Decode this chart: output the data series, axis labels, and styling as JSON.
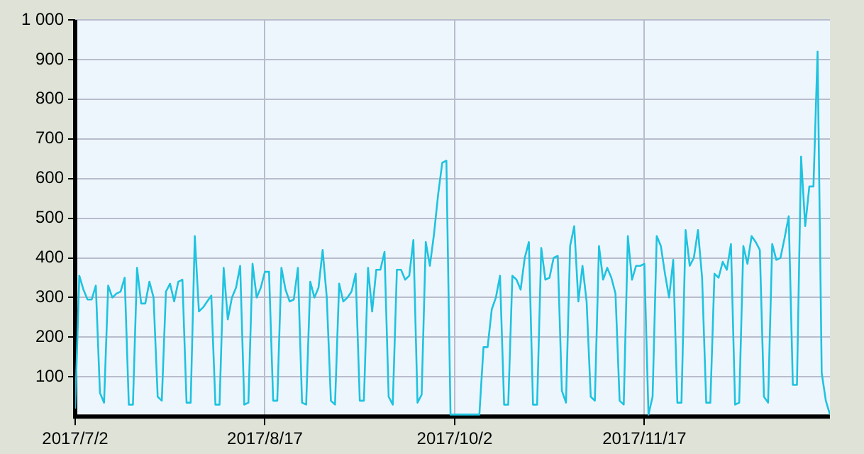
{
  "chart_data": {
    "type": "line",
    "color": "#1ec3e0",
    "marker": "none",
    "grid": true,
    "legend": false,
    "xlim": [
      "2017-07-02",
      "2018-01-01"
    ],
    "xticks": [
      {
        "value": "2017-07-02",
        "label": "2017/7/2"
      },
      {
        "value": "2017-08-17",
        "label": "2017/8/17"
      },
      {
        "value": "2017-10-02",
        "label": "2017/10/2"
      },
      {
        "value": "2017-11-17",
        "label": "2017/11/17"
      }
    ],
    "ylim": [
      0,
      1000
    ],
    "yticks": [
      100,
      200,
      300,
      400,
      500,
      600,
      700,
      800,
      900,
      {
        "value": 1000,
        "label": "1 000"
      }
    ],
    "x": [
      "2017-07-02",
      "2017-07-03",
      "2017-07-04",
      "2017-07-05",
      "2017-07-06",
      "2017-07-07",
      "2017-07-08",
      "2017-07-09",
      "2017-07-10",
      "2017-07-11",
      "2017-07-12",
      "2017-07-13",
      "2017-07-14",
      "2017-07-15",
      "2017-07-16",
      "2017-07-17",
      "2017-07-18",
      "2017-07-19",
      "2017-07-20",
      "2017-07-21",
      "2017-07-22",
      "2017-07-23",
      "2017-07-24",
      "2017-07-25",
      "2017-07-26",
      "2017-07-27",
      "2017-07-28",
      "2017-07-29",
      "2017-07-30",
      "2017-07-31",
      "2017-08-01",
      "2017-08-02",
      "2017-08-03",
      "2017-08-04",
      "2017-08-05",
      "2017-08-06",
      "2017-08-07",
      "2017-08-08",
      "2017-08-09",
      "2017-08-10",
      "2017-08-11",
      "2017-08-12",
      "2017-08-13",
      "2017-08-14",
      "2017-08-15",
      "2017-08-16",
      "2017-08-17",
      "2017-08-18",
      "2017-08-19",
      "2017-08-20",
      "2017-08-21",
      "2017-08-22",
      "2017-08-23",
      "2017-08-24",
      "2017-08-25",
      "2017-08-26",
      "2017-08-27",
      "2017-08-28",
      "2017-08-29",
      "2017-08-30",
      "2017-08-31",
      "2017-09-01",
      "2017-09-02",
      "2017-09-03",
      "2017-09-04",
      "2017-09-05",
      "2017-09-06",
      "2017-09-07",
      "2017-09-08",
      "2017-09-09",
      "2017-09-10",
      "2017-09-11",
      "2017-09-12",
      "2017-09-13",
      "2017-09-14",
      "2017-09-15",
      "2017-09-16",
      "2017-09-17",
      "2017-09-18",
      "2017-09-19",
      "2017-09-20",
      "2017-09-21",
      "2017-09-22",
      "2017-09-23",
      "2017-09-24",
      "2017-09-25",
      "2017-09-26",
      "2017-09-27",
      "2017-09-28",
      "2017-09-29",
      "2017-09-30",
      "2017-10-01",
      "2017-10-02",
      "2017-10-03",
      "2017-10-04",
      "2017-10-05",
      "2017-10-06",
      "2017-10-07",
      "2017-10-08",
      "2017-10-09",
      "2017-10-10",
      "2017-10-11",
      "2017-10-12",
      "2017-10-13",
      "2017-10-14",
      "2017-10-15",
      "2017-10-16",
      "2017-10-17",
      "2017-10-18",
      "2017-10-19",
      "2017-10-20",
      "2017-10-21",
      "2017-10-22",
      "2017-10-23",
      "2017-10-24",
      "2017-10-25",
      "2017-10-26",
      "2017-10-27",
      "2017-10-28",
      "2017-10-29",
      "2017-10-30",
      "2017-10-31",
      "2017-11-01",
      "2017-11-02",
      "2017-11-03",
      "2017-11-04",
      "2017-11-05",
      "2017-11-06",
      "2017-11-07",
      "2017-11-08",
      "2017-11-09",
      "2017-11-10",
      "2017-11-11",
      "2017-11-12",
      "2017-11-13",
      "2017-11-14",
      "2017-11-15",
      "2017-11-16",
      "2017-11-17",
      "2017-11-18",
      "2017-11-19",
      "2017-11-20",
      "2017-11-21",
      "2017-11-22",
      "2017-11-23",
      "2017-11-24",
      "2017-11-25",
      "2017-11-26",
      "2017-11-27",
      "2017-11-28",
      "2017-11-29",
      "2017-11-30",
      "2017-12-01",
      "2017-12-02",
      "2017-12-03",
      "2017-12-04",
      "2017-12-05",
      "2017-12-06",
      "2017-12-07",
      "2017-12-08",
      "2017-12-09",
      "2017-12-10",
      "2017-12-11",
      "2017-12-12",
      "2017-12-13",
      "2017-12-14",
      "2017-12-15",
      "2017-12-16",
      "2017-12-17",
      "2017-12-18",
      "2017-12-19",
      "2017-12-20",
      "2017-12-21",
      "2017-12-22",
      "2017-12-23",
      "2017-12-24",
      "2017-12-25",
      "2017-12-26",
      "2017-12-27",
      "2017-12-28",
      "2017-12-29",
      "2017-12-30",
      "2017-12-31",
      "2018-01-01"
    ],
    "values": [
      20,
      355,
      320,
      295,
      295,
      330,
      60,
      35,
      330,
      300,
      310,
      315,
      350,
      30,
      30,
      375,
      285,
      285,
      340,
      300,
      50,
      40,
      315,
      335,
      290,
      340,
      345,
      35,
      35,
      455,
      265,
      275,
      290,
      305,
      30,
      30,
      375,
      245,
      300,
      325,
      380,
      30,
      35,
      385,
      300,
      325,
      365,
      365,
      40,
      40,
      375,
      320,
      290,
      295,
      375,
      35,
      30,
      340,
      300,
      325,
      420,
      300,
      40,
      30,
      335,
      290,
      300,
      315,
      360,
      40,
      40,
      375,
      265,
      370,
      370,
      415,
      50,
      30,
      370,
      370,
      345,
      355,
      445,
      35,
      55,
      440,
      380,
      460,
      560,
      640,
      645,
      5,
      5,
      5,
      5,
      5,
      5,
      5,
      5,
      175,
      175,
      270,
      300,
      355,
      30,
      30,
      355,
      345,
      320,
      400,
      440,
      30,
      30,
      425,
      345,
      350,
      400,
      405,
      65,
      35,
      430,
      480,
      290,
      380,
      290,
      50,
      40,
      430,
      345,
      375,
      350,
      310,
      40,
      30,
      455,
      345,
      380,
      380,
      385,
      5,
      50,
      455,
      430,
      360,
      300,
      395,
      35,
      35,
      470,
      380,
      400,
      470,
      350,
      35,
      35,
      360,
      350,
      390,
      370,
      435,
      30,
      35,
      430,
      385,
      455,
      440,
      420,
      50,
      35,
      435,
      395,
      400,
      450,
      505,
      80,
      80,
      655,
      480,
      580,
      580,
      920,
      110,
      40,
      5
    ]
  }
}
